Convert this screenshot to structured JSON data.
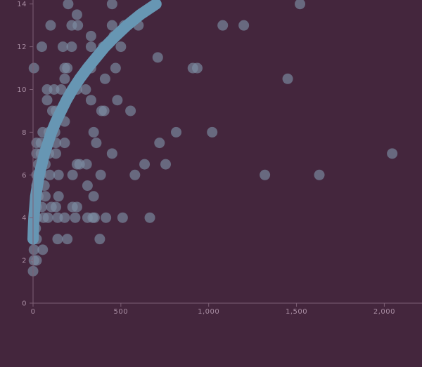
{
  "colors": {
    "background": "#44263d",
    "points": "#7d8ea3",
    "trend": "#6796b3",
    "axis": "#7d5f75",
    "tick_text": "#a98ea3"
  },
  "chart_data": {
    "type": "scatter",
    "title": "",
    "xlabel": "",
    "ylabel": "",
    "xlim": [
      0,
      2200
    ],
    "ylim": [
      0,
      14
    ],
    "grid": false,
    "x_ticks": [
      0,
      500,
      1000,
      1500,
      2000
    ],
    "x_tick_labels": [
      "0",
      "500",
      "1,000",
      "1,500",
      "2,000"
    ],
    "y_ticks": [
      0,
      2,
      4,
      6,
      8,
      10,
      12,
      14
    ],
    "y_tick_labels": [
      "0",
      "2",
      "4",
      "6",
      "8",
      "10",
      "12",
      "14"
    ],
    "series": [
      {
        "points": [
          [
            200,
            14
          ],
          [
            450,
            14
          ],
          [
            1520,
            14
          ],
          [
            250,
            13.5
          ],
          [
            100,
            13
          ],
          [
            220,
            13
          ],
          [
            255,
            13
          ],
          [
            450,
            13
          ],
          [
            520,
            13
          ],
          [
            600,
            13
          ],
          [
            1080,
            13
          ],
          [
            1200,
            13
          ],
          [
            330,
            12.5
          ],
          [
            460,
            12.5
          ],
          [
            50,
            12
          ],
          [
            170,
            12
          ],
          [
            220,
            12
          ],
          [
            330,
            12
          ],
          [
            400,
            12
          ],
          [
            500,
            12
          ],
          [
            710,
            11.5
          ],
          [
            5,
            11
          ],
          [
            180,
            11
          ],
          [
            195,
            11
          ],
          [
            330,
            11
          ],
          [
            470,
            11
          ],
          [
            910,
            11
          ],
          [
            935,
            11
          ],
          [
            180,
            10.5
          ],
          [
            410,
            10.5
          ],
          [
            1450,
            10.5
          ],
          [
            80,
            10
          ],
          [
            120,
            10
          ],
          [
            160,
            10
          ],
          [
            250,
            10
          ],
          [
            300,
            10
          ],
          [
            80,
            9.5
          ],
          [
            330,
            9.5
          ],
          [
            480,
            9.5
          ],
          [
            110,
            9
          ],
          [
            130,
            9
          ],
          [
            390,
            9
          ],
          [
            405,
            9
          ],
          [
            555,
            9
          ],
          [
            180,
            8.5
          ],
          [
            55,
            8
          ],
          [
            90,
            8
          ],
          [
            125,
            8
          ],
          [
            345,
            8
          ],
          [
            815,
            8
          ],
          [
            1020,
            8
          ],
          [
            20,
            7.5
          ],
          [
            45,
            7.5
          ],
          [
            130,
            7.5
          ],
          [
            180,
            7.5
          ],
          [
            360,
            7.5
          ],
          [
            720,
            7.5
          ],
          [
            20,
            7
          ],
          [
            45,
            7
          ],
          [
            90,
            7
          ],
          [
            130,
            7
          ],
          [
            450,
            7
          ],
          [
            2045,
            7
          ],
          [
            30,
            6.5
          ],
          [
            70,
            6.5
          ],
          [
            250,
            6.5
          ],
          [
            265,
            6.5
          ],
          [
            305,
            6.5
          ],
          [
            635,
            6.5
          ],
          [
            755,
            6.5
          ],
          [
            20,
            6
          ],
          [
            45,
            6
          ],
          [
            95,
            6
          ],
          [
            145,
            6
          ],
          [
            225,
            6
          ],
          [
            385,
            6
          ],
          [
            580,
            6
          ],
          [
            1320,
            6
          ],
          [
            1630,
            6
          ],
          [
            20,
            5.5
          ],
          [
            65,
            5.5
          ],
          [
            310,
            5.5
          ],
          [
            30,
            5
          ],
          [
            70,
            5
          ],
          [
            145,
            5
          ],
          [
            345,
            5
          ],
          [
            20,
            4.5
          ],
          [
            50,
            4.5
          ],
          [
            105,
            4.5
          ],
          [
            130,
            4.5
          ],
          [
            225,
            4.5
          ],
          [
            250,
            4.5
          ],
          [
            20,
            4
          ],
          [
            60,
            4
          ],
          [
            85,
            4
          ],
          [
            140,
            4
          ],
          [
            180,
            4
          ],
          [
            240,
            4
          ],
          [
            310,
            4
          ],
          [
            340,
            4
          ],
          [
            350,
            4
          ],
          [
            415,
            4
          ],
          [
            510,
            4
          ],
          [
            665,
            4
          ],
          [
            15,
            3.5
          ],
          [
            20,
            3
          ],
          [
            140,
            3
          ],
          [
            195,
            3
          ],
          [
            380,
            3
          ],
          [
            5,
            2.5
          ],
          [
            55,
            2.5
          ],
          [
            5,
            2
          ],
          [
            20,
            2
          ],
          [
            0,
            1.5
          ]
        ]
      },
      {
        "type": "line",
        "points": [
          [
            0,
            3
          ],
          [
            2,
            3.5
          ],
          [
            5,
            4
          ],
          [
            10,
            4.5
          ],
          [
            15,
            5
          ],
          [
            25,
            5.5
          ],
          [
            35,
            6
          ],
          [
            50,
            6.5
          ],
          [
            65,
            7
          ],
          [
            85,
            7.5
          ],
          [
            105,
            8
          ],
          [
            130,
            8.5
          ],
          [
            160,
            9
          ],
          [
            190,
            9.5
          ],
          [
            225,
            10
          ],
          [
            265,
            10.5
          ],
          [
            310,
            11
          ],
          [
            360,
            11.5
          ],
          [
            410,
            12
          ],
          [
            470,
            12.5
          ],
          [
            535,
            13
          ],
          [
            610,
            13.5
          ],
          [
            700,
            14
          ]
        ]
      }
    ]
  }
}
